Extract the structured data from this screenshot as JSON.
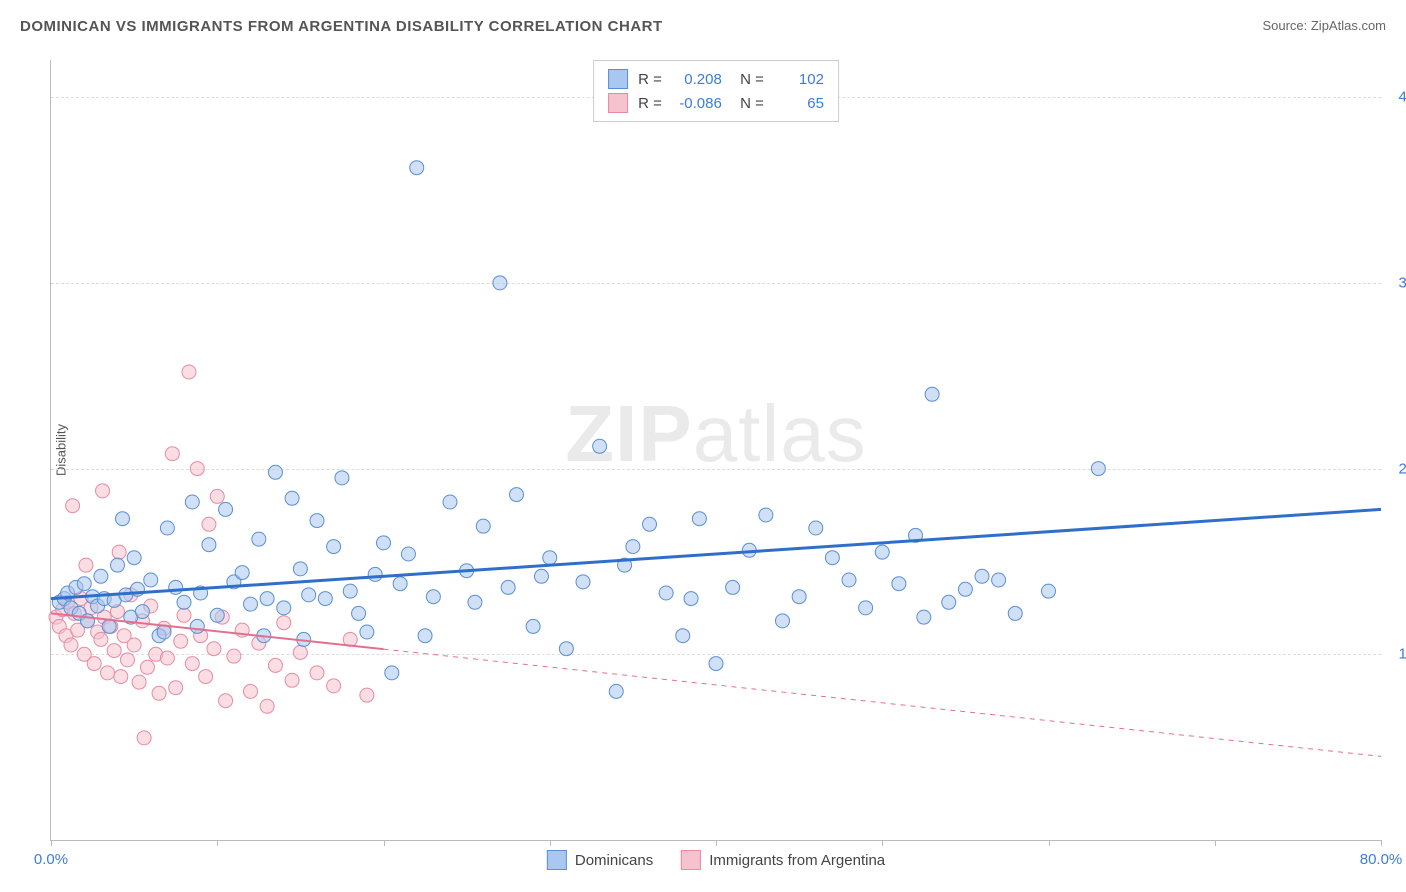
{
  "title": "DOMINICAN VS IMMIGRANTS FROM ARGENTINA DISABILITY CORRELATION CHART",
  "source": "Source: ZipAtlas.com",
  "watermark_a": "ZIP",
  "watermark_b": "atlas",
  "ylabel": "Disability",
  "chart": {
    "type": "scatter",
    "xlim": [
      0,
      80
    ],
    "ylim": [
      0,
      42
    ],
    "x_ticks": [
      0,
      10,
      20,
      30,
      40,
      50,
      60,
      70,
      80
    ],
    "y_ticks": [
      10,
      20,
      30,
      40
    ],
    "x_tick_labels": {
      "0": "0.0%",
      "80": "80.0%"
    },
    "y_tick_labels": {
      "10": "10.0%",
      "20": "20.0%",
      "30": "30.0%",
      "40": "40.0%"
    },
    "grid_color": "#dddddd",
    "background_color": "#ffffff",
    "axis_label_color_blue": "#3b7dd8",
    "marker_radius": 7,
    "marker_opacity": 0.55,
    "series": [
      {
        "name": "Dominicans",
        "color_fill": "#a9c7ef",
        "color_stroke": "#5a8fd6",
        "R": "0.208",
        "N": "102",
        "trend": {
          "x1": 0,
          "y1": 13.0,
          "x2": 80,
          "y2": 17.8,
          "solid_until_x": 80
        },
        "points": [
          [
            0.5,
            12.8
          ],
          [
            0.8,
            13.0
          ],
          [
            1.0,
            13.3
          ],
          [
            1.2,
            12.5
          ],
          [
            1.5,
            13.6
          ],
          [
            1.7,
            12.2
          ],
          [
            2.0,
            13.8
          ],
          [
            2.2,
            11.8
          ],
          [
            2.5,
            13.1
          ],
          [
            2.8,
            12.6
          ],
          [
            3.0,
            14.2
          ],
          [
            3.2,
            13.0
          ],
          [
            3.5,
            11.5
          ],
          [
            3.8,
            12.9
          ],
          [
            4.0,
            14.8
          ],
          [
            4.3,
            17.3
          ],
          [
            4.5,
            13.2
          ],
          [
            4.8,
            12.0
          ],
          [
            5.0,
            15.2
          ],
          [
            5.2,
            13.5
          ],
          [
            5.5,
            12.3
          ],
          [
            6.0,
            14.0
          ],
          [
            6.5,
            11.0
          ],
          [
            7.0,
            16.8
          ],
          [
            7.5,
            13.6
          ],
          [
            8.0,
            12.8
          ],
          [
            8.5,
            18.2
          ],
          [
            9.0,
            13.3
          ],
          [
            9.5,
            15.9
          ],
          [
            10.0,
            12.1
          ],
          [
            10.5,
            17.8
          ],
          [
            11.0,
            13.9
          ],
          [
            11.5,
            14.4
          ],
          [
            12.0,
            12.7
          ],
          [
            12.5,
            16.2
          ],
          [
            13.0,
            13.0
          ],
          [
            13.5,
            19.8
          ],
          [
            14.0,
            12.5
          ],
          [
            14.5,
            18.4
          ],
          [
            15.0,
            14.6
          ],
          [
            15.5,
            13.2
          ],
          [
            16.0,
            17.2
          ],
          [
            16.5,
            13.0
          ],
          [
            17.0,
            15.8
          ],
          [
            17.5,
            19.5
          ],
          [
            18.0,
            13.4
          ],
          [
            18.5,
            12.2
          ],
          [
            19.0,
            11.2
          ],
          [
            19.5,
            14.3
          ],
          [
            20.0,
            16.0
          ],
          [
            20.5,
            9.0
          ],
          [
            21.0,
            13.8
          ],
          [
            21.5,
            15.4
          ],
          [
            22.0,
            36.2
          ],
          [
            23.0,
            13.1
          ],
          [
            24.0,
            18.2
          ],
          [
            25.0,
            14.5
          ],
          [
            25.5,
            12.8
          ],
          [
            26.0,
            16.9
          ],
          [
            27.0,
            30.0
          ],
          [
            27.5,
            13.6
          ],
          [
            28.0,
            18.6
          ],
          [
            29.0,
            11.5
          ],
          [
            30.0,
            15.2
          ],
          [
            31.0,
            10.3
          ],
          [
            32.0,
            13.9
          ],
          [
            33.0,
            21.2
          ],
          [
            34.0,
            8.0
          ],
          [
            35.0,
            15.8
          ],
          [
            36.0,
            17.0
          ],
          [
            37.0,
            13.3
          ],
          [
            38.0,
            11.0
          ],
          [
            39.0,
            17.3
          ],
          [
            40.0,
            9.5
          ],
          [
            41.0,
            13.6
          ],
          [
            42.0,
            15.6
          ],
          [
            43.0,
            17.5
          ],
          [
            44.0,
            11.8
          ],
          [
            45.0,
            13.1
          ],
          [
            46.0,
            16.8
          ],
          [
            47.0,
            15.2
          ],
          [
            48.0,
            14.0
          ],
          [
            49.0,
            12.5
          ],
          [
            50.0,
            15.5
          ],
          [
            51.0,
            13.8
          ],
          [
            52.0,
            16.4
          ],
          [
            53.0,
            24.0
          ],
          [
            54.0,
            12.8
          ],
          [
            55.0,
            13.5
          ],
          [
            56.0,
            14.2
          ],
          [
            57.0,
            14.0
          ],
          [
            58.0,
            12.2
          ],
          [
            60.0,
            13.4
          ],
          [
            63.0,
            20.0
          ],
          [
            52.5,
            12.0
          ],
          [
            38.5,
            13.0
          ],
          [
            34.5,
            14.8
          ],
          [
            29.5,
            14.2
          ],
          [
            22.5,
            11.0
          ],
          [
            6.8,
            11.2
          ],
          [
            8.8,
            11.5
          ],
          [
            12.8,
            11.0
          ],
          [
            15.2,
            10.8
          ]
        ]
      },
      {
        "name": "Immigrants from Argentina",
        "color_fill": "#f6c2ce",
        "color_stroke": "#e88ba2",
        "R": "-0.086",
        "N": "65",
        "trend": {
          "x1": 0,
          "y1": 12.2,
          "x2": 80,
          "y2": 4.5,
          "solid_until_x": 20
        },
        "points": [
          [
            0.3,
            12.0
          ],
          [
            0.5,
            11.5
          ],
          [
            0.7,
            12.4
          ],
          [
            0.9,
            11.0
          ],
          [
            1.0,
            12.8
          ],
          [
            1.2,
            10.5
          ],
          [
            1.4,
            12.2
          ],
          [
            1.6,
            11.3
          ],
          [
            1.8,
            13.0
          ],
          [
            2.0,
            10.0
          ],
          [
            2.2,
            11.8
          ],
          [
            2.4,
            12.5
          ],
          [
            2.6,
            9.5
          ],
          [
            2.8,
            11.2
          ],
          [
            3.0,
            10.8
          ],
          [
            3.2,
            12.0
          ],
          [
            3.4,
            9.0
          ],
          [
            3.6,
            11.5
          ],
          [
            3.8,
            10.2
          ],
          [
            4.0,
            12.3
          ],
          [
            4.2,
            8.8
          ],
          [
            4.4,
            11.0
          ],
          [
            4.6,
            9.7
          ],
          [
            4.8,
            13.2
          ],
          [
            5.0,
            10.5
          ],
          [
            5.3,
            8.5
          ],
          [
            5.5,
            11.8
          ],
          [
            5.8,
            9.3
          ],
          [
            6.0,
            12.6
          ],
          [
            6.3,
            10.0
          ],
          [
            6.5,
            7.9
          ],
          [
            6.8,
            11.4
          ],
          [
            7.0,
            9.8
          ],
          [
            7.3,
            20.8
          ],
          [
            7.5,
            8.2
          ],
          [
            7.8,
            10.7
          ],
          [
            8.0,
            12.1
          ],
          [
            8.3,
            25.2
          ],
          [
            8.5,
            9.5
          ],
          [
            8.8,
            20.0
          ],
          [
            9.0,
            11.0
          ],
          [
            9.3,
            8.8
          ],
          [
            9.5,
            17.0
          ],
          [
            9.8,
            10.3
          ],
          [
            10.0,
            18.5
          ],
          [
            10.3,
            12.0
          ],
          [
            10.5,
            7.5
          ],
          [
            11.0,
            9.9
          ],
          [
            11.5,
            11.3
          ],
          [
            12.0,
            8.0
          ],
          [
            12.5,
            10.6
          ],
          [
            13.0,
            7.2
          ],
          [
            13.5,
            9.4
          ],
          [
            14.0,
            11.7
          ],
          [
            14.5,
            8.6
          ],
          [
            15.0,
            10.1
          ],
          [
            16.0,
            9.0
          ],
          [
            17.0,
            8.3
          ],
          [
            18.0,
            10.8
          ],
          [
            19.0,
            7.8
          ],
          [
            5.6,
            5.5
          ],
          [
            3.1,
            18.8
          ],
          [
            1.3,
            18.0
          ],
          [
            2.1,
            14.8
          ],
          [
            4.1,
            15.5
          ]
        ]
      }
    ]
  },
  "bottom_legend": [
    "Dominicans",
    "Immigrants from Argentina"
  ]
}
